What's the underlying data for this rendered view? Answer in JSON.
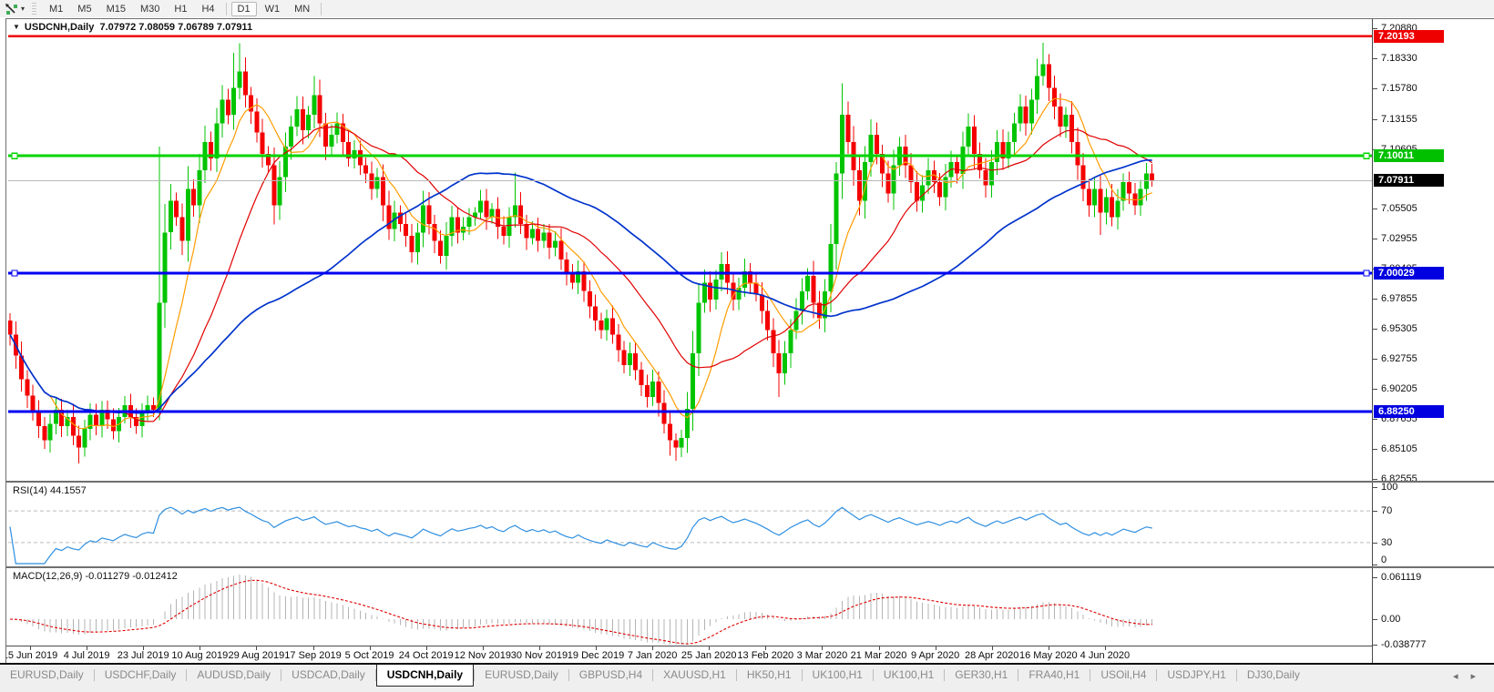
{
  "toolbar": {
    "timeframes": [
      "M1",
      "M5",
      "M15",
      "M30",
      "H1",
      "H4",
      "D1",
      "W1",
      "MN"
    ],
    "active_timeframe": "D1",
    "dropdown_arrow": "▾"
  },
  "chart": {
    "title_symbol": "USDCNH,Daily",
    "title_ohlc": "7.07972 7.08059 7.06789 7.07911",
    "collapse_arrow": "▼"
  },
  "rsi_panel": {
    "label": "RSI(14) 44.1557",
    "axis_labels": [
      "100",
      "70",
      "30",
      "0"
    ]
  },
  "macd_panel": {
    "label": "MACD(12,26,9) -0.011279 -0.012412",
    "axis_labels": [
      "0.061119",
      "0.00",
      "-0.038777"
    ]
  },
  "date_axis": {
    "labels": [
      "15 Jun 2019",
      "4 Jul 2019",
      "23 Jul 2019",
      "10 Aug 2019",
      "29 Aug 2019",
      "17 Sep 2019",
      "5 Oct 2019",
      "24 Oct 2019",
      "12 Nov 2019",
      "30 Nov 2019",
      "19 Dec 2019",
      "7 Jan 2020",
      "25 Jan 2020",
      "13 Feb 2020",
      "3 Mar 2020",
      "21 Mar 2020",
      "9 Apr 2020",
      "28 Apr 2020",
      "16 May 2020",
      "4 Jun 2020"
    ]
  },
  "tabs": {
    "items": [
      {
        "label": "EURUSD,Daily",
        "active": false
      },
      {
        "label": "USDCHF,Daily",
        "active": false
      },
      {
        "label": "AUDUSD,Daily",
        "active": false
      },
      {
        "label": "USDCAD,Daily",
        "active": false
      },
      {
        "label": "USDCNH,Daily",
        "active": true
      },
      {
        "label": "EURUSD,Daily",
        "active": false
      },
      {
        "label": "GBPUSD,H4",
        "active": false
      },
      {
        "label": "XAUUSD,H1",
        "active": false
      },
      {
        "label": "HK50,H1",
        "active": false
      },
      {
        "label": "UK100,H1",
        "active": false
      },
      {
        "label": "UK100,H1",
        "active": false
      },
      {
        "label": "GER30,H1",
        "active": false
      },
      {
        "label": "FRA40,H1",
        "active": false
      },
      {
        "label": "USOil,H4",
        "active": false
      },
      {
        "label": "USDJPY,H1",
        "active": false
      },
      {
        "label": "DJ30,Daily",
        "active": false
      }
    ],
    "scroll_left_icon": "◂",
    "scroll_right_icon": "▸"
  },
  "colors": {
    "up": "#00c400",
    "down": "#f40000",
    "rsi_line": "#2f8fe0",
    "rsi_level_dash": "#bcbcbc",
    "macd_hist": "#b4b4b4",
    "macd_signal": "#e00000",
    "current_price_line": "#b9b9b9"
  },
  "chart_data": {
    "type": "candlestick",
    "symbol": "USDCNH",
    "timeframe": "Daily",
    "current_ohlc": {
      "open": 7.07972,
      "high": 7.08059,
      "low": 7.06789,
      "close": 7.07911
    },
    "y_range": [
      6.8237,
      7.2166
    ],
    "y_ticks": [
      "7.20880",
      "7.18330",
      "7.15780",
      "7.13155",
      "7.10605",
      "7.05505",
      "7.02955",
      "7.00405",
      "6.97855",
      "6.95305",
      "6.92755",
      "6.90205",
      "6.87655",
      "6.85105",
      "6.82555"
    ],
    "x_labels": [
      "15 Jun 2019",
      "4 Jul 2019",
      "23 Jul 2019",
      "10 Aug 2019",
      "29 Aug 2019",
      "17 Sep 2019",
      "5 Oct 2019",
      "24 Oct 2019",
      "12 Nov 2019",
      "30 Nov 2019",
      "19 Dec 2019",
      "7 Jan 2020",
      "25 Jan 2020",
      "13 Feb 2020",
      "3 Mar 2020",
      "21 Mar 2020",
      "9 Apr 2020",
      "28 Apr 2020",
      "16 May 2020",
      "4 Jun 2020"
    ],
    "horizontal_lines": [
      {
        "price_text": "7.20193",
        "price": 7.20193,
        "color": "#ee0000",
        "badge": "#ee0000",
        "width": 2.5,
        "handles": false
      },
      {
        "price_text": "7.10011",
        "price": 7.10011,
        "color": "#00d400",
        "badge": "#00c000",
        "width": 3,
        "handles": true
      },
      {
        "price_text": "7.07911",
        "price": 7.07911,
        "color": "#b9b9b9",
        "badge": "#000000",
        "width": 1,
        "handles": false
      },
      {
        "price_text": "7.00029",
        "price": 7.00029,
        "color": "#0000f0",
        "badge": "#0000e0",
        "width": 3,
        "handles": true
      },
      {
        "price_text": "6.88250",
        "price": 6.8825,
        "color": "#0000f0",
        "badge": "#0000e0",
        "width": 3,
        "handles": false
      }
    ],
    "first_open": 6.96,
    "closes": [
      6.948,
      6.93,
      6.91,
      6.896,
      6.882,
      6.87,
      6.858,
      6.872,
      6.884,
      6.87,
      6.878,
      6.862,
      6.852,
      6.868,
      6.88,
      6.87,
      6.884,
      6.876,
      6.866,
      6.878,
      6.888,
      6.878,
      6.87,
      6.882,
      6.888,
      6.884,
      6.975,
      7.035,
      7.062,
      7.048,
      7.028,
      7.072,
      7.058,
      7.088,
      7.112,
      7.098,
      7.128,
      7.148,
      7.135,
      7.158,
      7.172,
      7.152,
      7.138,
      7.12,
      7.102,
      7.092,
      7.058,
      7.082,
      7.108,
      7.125,
      7.14,
      7.122,
      7.135,
      7.152,
      7.128,
      7.108,
      7.118,
      7.128,
      7.112,
      7.098,
      7.105,
      7.092,
      7.085,
      7.072,
      7.082,
      7.058,
      7.038,
      7.052,
      7.042,
      7.032,
      7.018,
      7.035,
      7.058,
      7.042,
      7.028,
      7.015,
      7.032,
      7.048,
      7.035,
      7.04,
      7.048,
      7.052,
      7.062,
      7.048,
      7.055,
      7.04,
      7.032,
      7.048,
      7.058,
      7.042,
      7.03,
      7.038,
      7.028,
      7.035,
      7.022,
      7.028,
      7.012,
      7.0,
      6.992,
      7.002,
      6.985,
      6.972,
      6.96,
      6.952,
      6.962,
      6.948,
      6.935,
      6.922,
      6.932,
      6.918,
      6.905,
      6.895,
      6.908,
      6.89,
      6.872,
      6.858,
      6.852,
      6.86,
      6.885,
      6.932,
      6.975,
      6.992,
      6.978,
      6.995,
      7.008,
      6.992,
      6.978,
      6.988,
      7.002,
      6.992,
      6.982,
      6.968,
      6.952,
      6.932,
      6.915,
      6.932,
      6.952,
      6.968,
      6.985,
      6.998,
      6.975,
      6.962,
      6.985,
      7.025,
      7.085,
      7.135,
      7.112,
      7.088,
      7.062,
      7.095,
      7.118,
      7.102,
      7.085,
      7.068,
      7.092,
      7.108,
      7.092,
      7.078,
      7.062,
      7.075,
      7.088,
      7.078,
      7.065,
      7.082,
      7.095,
      7.085,
      7.108,
      7.125,
      7.102,
      7.088,
      7.075,
      7.095,
      7.112,
      7.098,
      7.112,
      7.128,
      7.142,
      7.128,
      7.148,
      7.168,
      7.178,
      7.158,
      7.142,
      7.125,
      7.135,
      7.112,
      7.092,
      7.072,
      7.058,
      7.072,
      7.052,
      7.065,
      7.048,
      7.062,
      7.078,
      7.068,
      7.058,
      7.072,
      7.085,
      7.079
    ],
    "high_overrides": {
      "26": 7.108,
      "39": 7.188,
      "40": 7.196,
      "53": 7.168,
      "88": 7.086,
      "144": 7.095,
      "145": 7.162,
      "179": 7.183,
      "180": 7.1965
    },
    "low_overrides": {
      "12": 6.8385,
      "26": 6.875,
      "115": 6.845,
      "116": 6.8405,
      "134": 6.895,
      "190": 7.033
    },
    "indicators": {
      "ma_fast": {
        "period": 8,
        "color": "#ff9c00"
      },
      "ma_mid": {
        "period": 21,
        "color": "#e00000"
      },
      "ma_slow": {
        "period": 55,
        "color": "#0033cc"
      },
      "rsi": {
        "period": 14,
        "value": 44.1557,
        "levels": [
          70,
          30
        ]
      },
      "macd": {
        "fast": 12,
        "slow": 26,
        "signal": 9,
        "value": -0.011279,
        "signal_value": -0.012412
      }
    }
  }
}
